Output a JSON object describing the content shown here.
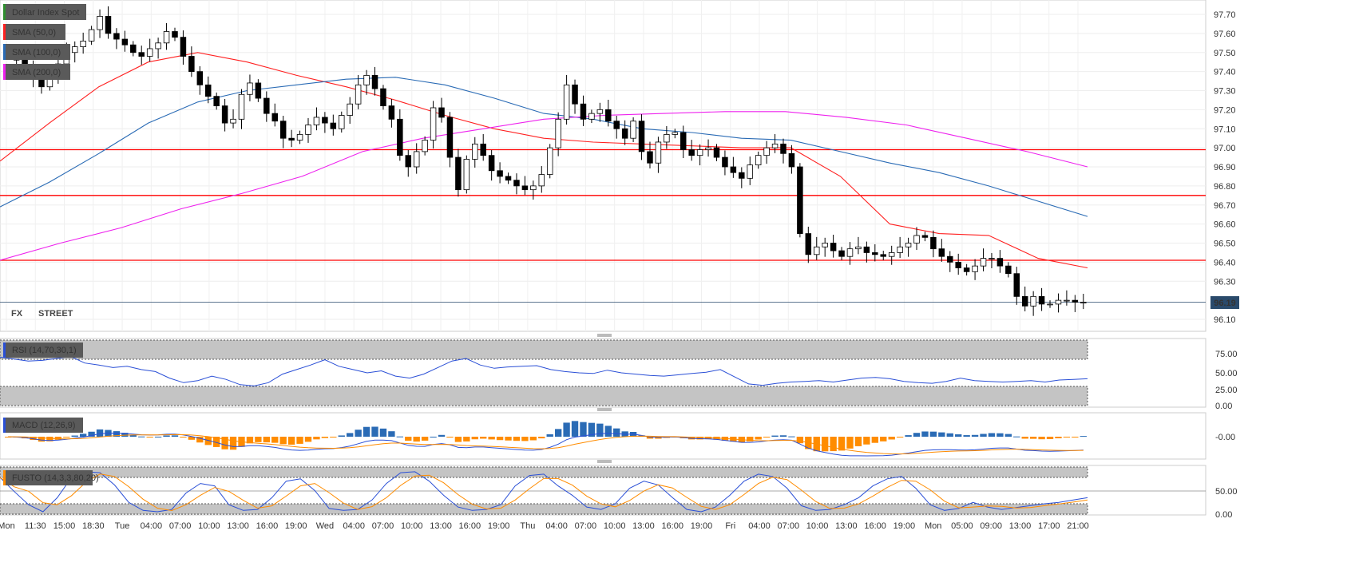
{
  "chart_data": {
    "type": "candlestick",
    "instrument": "Dollar Index Spot",
    "indicators": [
      "SMA (50,0)",
      "SMA (100,0)",
      "SMA (200,0)"
    ],
    "colors": {
      "sma50": "#ff2020",
      "sma100": "#2a6bb5",
      "sma200": "#ee22ee",
      "resistance": "#ff0000",
      "last": "#2a4a6b"
    },
    "x_tick_labels": [
      "Mon",
      "11:30",
      "15:00",
      "18:30",
      "Tue",
      "04:00",
      "07:00",
      "10:00",
      "13:00",
      "16:00",
      "19:00",
      "Wed",
      "04:00",
      "07:00",
      "10:00",
      "13:00",
      "16:00",
      "19:00",
      "Thu",
      "04:00",
      "07:00",
      "10:00",
      "13:00",
      "16:00",
      "19:00",
      "Fri",
      "04:00",
      "07:00",
      "10:00",
      "13:00",
      "16:00",
      "19:00",
      "Mon",
      "05:00",
      "09:00",
      "13:00",
      "17:00",
      "21:00"
    ],
    "y_tick_labels": [
      "97.70",
      "97.60",
      "97.50",
      "97.40",
      "97.30",
      "97.20",
      "97.10",
      "97.00",
      "96.90",
      "96.80",
      "96.70",
      "96.60",
      "96.50",
      "96.40",
      "96.30",
      "96.10"
    ],
    "y_range": [
      96.05,
      97.75
    ],
    "last_price": 96.19,
    "last_price_label": "96.19",
    "horizontal_levels": [
      96.99,
      96.75,
      96.41
    ],
    "closes": [
      97.5,
      97.46,
      97.43,
      97.37,
      97.32,
      97.38,
      97.44,
      97.5,
      97.53,
      97.56,
      97.62,
      97.69,
      97.6,
      97.57,
      97.54,
      97.5,
      97.48,
      97.52,
      97.55,
      97.61,
      97.58,
      97.48,
      97.4,
      97.33,
      97.27,
      97.22,
      97.13,
      97.15,
      97.28,
      97.34,
      97.26,
      97.18,
      97.14,
      97.05,
      97.04,
      97.07,
      97.12,
      97.16,
      97.13,
      97.1,
      97.17,
      97.23,
      97.33,
      97.38,
      97.31,
      97.22,
      97.15,
      96.96,
      96.9,
      96.98,
      97.04,
      97.21,
      97.16,
      96.95,
      96.78,
      96.94,
      97.02,
      96.96,
      96.88,
      96.85,
      96.83,
      96.8,
      96.78,
      96.8,
      96.86,
      97.0,
      97.15,
      97.33,
      97.23,
      97.15,
      97.18,
      97.2,
      97.14,
      97.1,
      97.05,
      97.14,
      96.98,
      96.92,
      97.03,
      97.07,
      97.08,
      96.99,
      96.96,
      96.99,
      97.0,
      96.95,
      96.9,
      96.87,
      96.84,
      96.91,
      96.96,
      97.0,
      97.02,
      96.97,
      96.9,
      96.55,
      96.44,
      96.48,
      96.5,
      96.46,
      96.43,
      96.47,
      96.48,
      96.45,
      96.44,
      96.43,
      96.45,
      96.48,
      96.5,
      96.54,
      96.53,
      96.47,
      96.43,
      96.4,
      96.37,
      96.35,
      96.38,
      96.42,
      96.42,
      96.38,
      96.34,
      96.22,
      96.17,
      96.22,
      96.18,
      96.18,
      96.2,
      96.2,
      96.19,
      96.19
    ],
    "series": [
      {
        "name": "SMA (50,0)",
        "values": [
          96.93,
          97.13,
          97.32,
          97.45,
          97.5,
          97.45,
          97.38,
          97.32,
          97.25,
          97.17,
          97.1,
          97.05,
          97.03,
          97.02,
          97.01,
          97.0,
          97.0,
          96.85,
          96.6,
          96.55,
          96.54,
          96.42,
          96.37
        ]
      },
      {
        "name": "SMA (100,0)",
        "values": [
          96.69,
          96.82,
          96.97,
          97.13,
          97.24,
          97.3,
          97.33,
          97.36,
          97.37,
          97.33,
          97.26,
          97.18,
          97.15,
          97.1,
          97.08,
          97.05,
          97.04,
          96.98,
          96.92,
          96.87,
          96.8,
          96.72,
          96.64
        ]
      },
      {
        "name": "SMA (200,0)",
        "values": [
          96.41,
          96.5,
          96.58,
          96.68,
          96.76,
          96.85,
          96.98,
          97.05,
          97.1,
          97.15,
          97.17,
          97.18,
          97.19,
          97.19,
          97.16,
          97.12,
          97.05,
          96.98,
          96.9
        ]
      }
    ]
  },
  "rsi": {
    "label": "RSI (14,70,30,1)",
    "axis_labels": [
      "75.00",
      "50.00",
      "25.00",
      "0.00"
    ],
    "values": [
      74,
      71,
      68,
      69,
      72,
      75,
      65,
      62,
      58,
      60,
      55,
      52,
      42,
      35,
      38,
      45,
      40,
      32,
      30,
      35,
      48,
      55,
      62,
      70,
      60,
      55,
      50,
      53,
      45,
      42,
      48,
      58,
      68,
      72,
      62,
      57,
      59,
      60,
      61,
      55,
      52,
      50,
      49,
      54,
      50,
      48,
      46,
      45,
      47,
      49,
      51,
      55,
      44,
      33,
      31,
      34,
      36,
      37,
      38,
      36,
      39,
      42,
      43,
      41,
      37,
      35,
      34,
      37,
      42,
      38,
      37,
      36,
      37,
      38,
      36,
      39,
      40,
      41
    ]
  },
  "macd": {
    "label": "MACD (12,26,9)",
    "axis_label": "-0.00",
    "colors": {
      "macd": "#2a6bb5",
      "signal": "#ff8c00"
    }
  },
  "fusto": {
    "label": "FUSTO (14,3,3,80,20)",
    "axis_labels": [
      "50.00",
      "0.00"
    ],
    "values": [
      78,
      48,
      20,
      5,
      35,
      78,
      90,
      88,
      62,
      25,
      8,
      5,
      10,
      45,
      65,
      60,
      20,
      8,
      10,
      35,
      70,
      75,
      50,
      12,
      8,
      10,
      30,
      65,
      88,
      90,
      70,
      40,
      15,
      8,
      10,
      20,
      60,
      82,
      85,
      60,
      40,
      15,
      10,
      22,
      55,
      70,
      62,
      35,
      10,
      5,
      15,
      40,
      70,
      85,
      80,
      55,
      18,
      8,
      10,
      20,
      35,
      60,
      75,
      80,
      55,
      20,
      8,
      12,
      25,
      15,
      10,
      14,
      18,
      22,
      25,
      30,
      35
    ]
  },
  "watermark": {
    "text_fx": "FX",
    "text_street": "STREET"
  }
}
